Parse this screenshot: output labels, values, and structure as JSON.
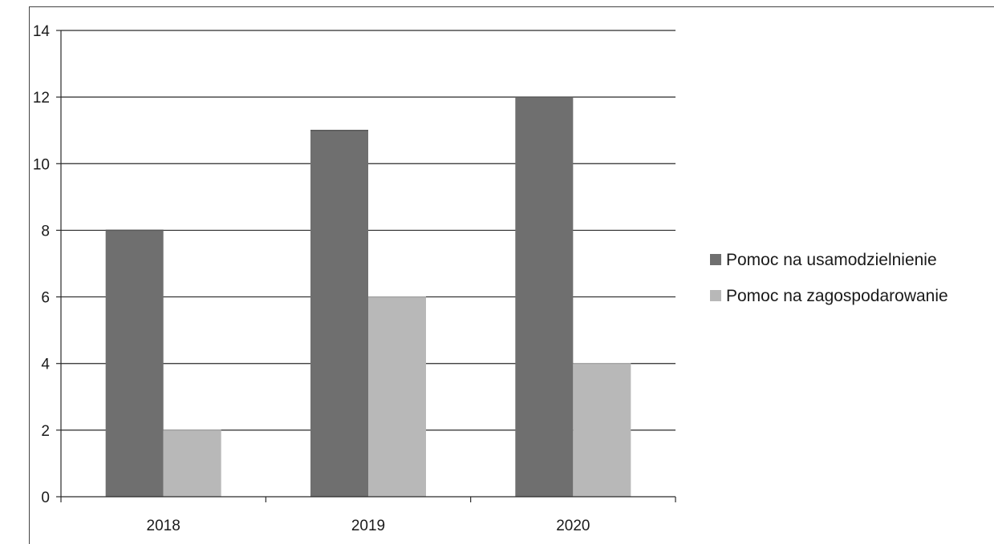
{
  "chart_data": {
    "type": "bar",
    "title": "",
    "xlabel": "",
    "ylabel": "",
    "categories": [
      "2018",
      "2019",
      "2020"
    ],
    "series": [
      {
        "name": "Pomoc na usamodzielnienie",
        "values": [
          8,
          11,
          12
        ],
        "color": "#6f6f6f"
      },
      {
        "name": "Pomoc na zagospodarowanie",
        "values": [
          2,
          6,
          4
        ],
        "color": "#b8b8b8"
      }
    ],
    "ylim": [
      0,
      14
    ],
    "yticks": [
      0,
      2,
      4,
      6,
      8,
      10,
      12,
      14
    ],
    "grid": true,
    "legend_position": "right"
  }
}
